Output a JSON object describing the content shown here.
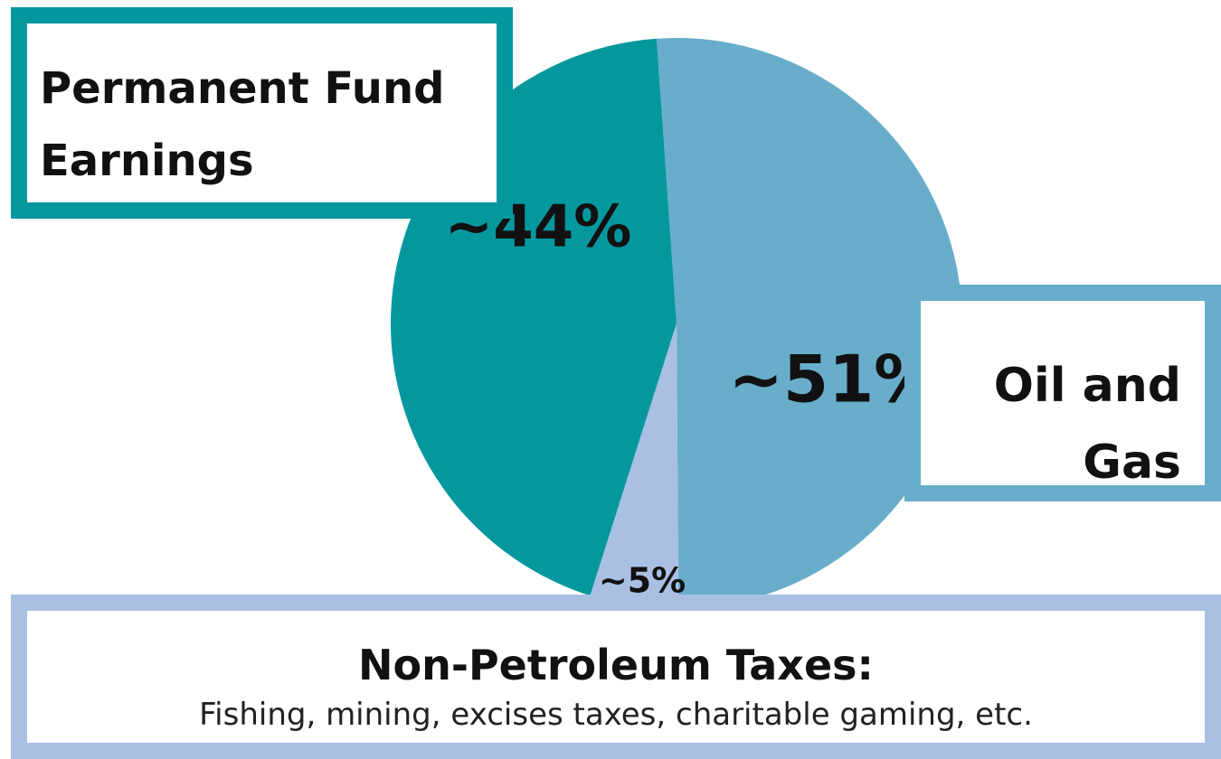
{
  "chart_data": {
    "type": "pie",
    "categories": [
      "Oil and Gas",
      "Non-Petroleum Taxes:",
      "Permanent Fund Earnings"
    ],
    "values": [
      51,
      5,
      44
    ],
    "value_labels": [
      "~51%",
      "~5%",
      "~44%"
    ],
    "colors": [
      "#68aecb",
      "#a9c0e3",
      "#05979e"
    ],
    "annotation": "Fishing, mining, excises taxes, charitable gaming, etc."
  }
}
